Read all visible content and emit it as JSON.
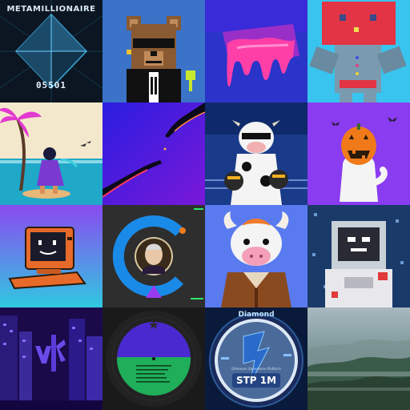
{
  "tiles": [
    {
      "title_text": "METAMILLIONAIRE",
      "number_text": "05501"
    },
    {},
    {},
    {},
    {},
    {},
    {},
    {},
    {},
    {},
    {},
    {},
    {},
    {},
    {},
    {
      "title_text": "Diamond",
      "subtitle_text": "Ethereum Stoneverse Platform",
      "main_text": "STP 1M"
    },
    {}
  ],
  "colors": {
    "crystal": "#3ba7d8",
    "pumpkin": "#f07a1a",
    "purple_bg": "#8a3cf0",
    "cyan_bg": "#33c6f0",
    "green_vinyl": "#1fae5a"
  }
}
